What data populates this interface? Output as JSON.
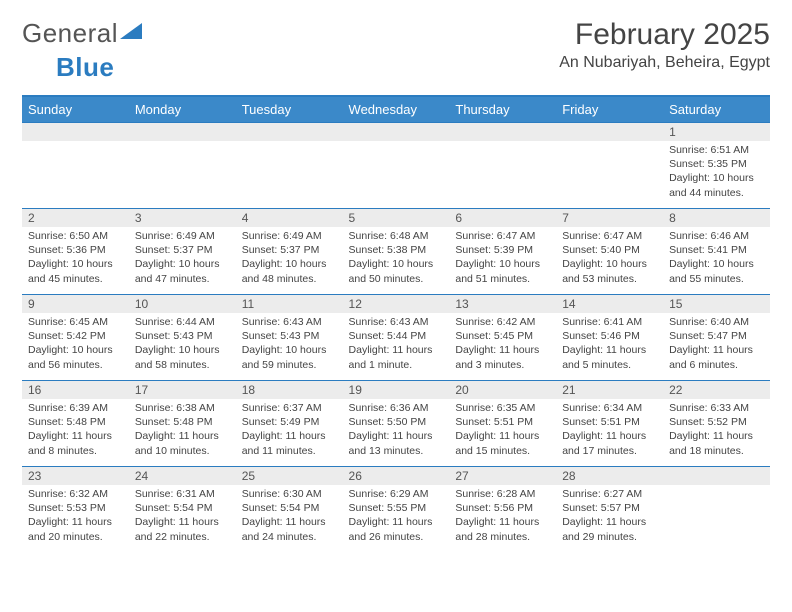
{
  "logo": {
    "text1": "General",
    "text2": "Blue"
  },
  "title": "February 2025",
  "location": "An Nubariyah, Beheira, Egypt",
  "colors": {
    "header_bg": "#3b89c9",
    "header_text": "#ffffff",
    "border": "#2b7cc0",
    "daynum_bg": "#ececec",
    "text": "#444444"
  },
  "weekdays": [
    "Sunday",
    "Monday",
    "Tuesday",
    "Wednesday",
    "Thursday",
    "Friday",
    "Saturday"
  ],
  "first_weekday": 6,
  "days": [
    {
      "n": 1,
      "sr": "6:51 AM",
      "ss": "5:35 PM",
      "dl": "10 hours and 44 minutes."
    },
    {
      "n": 2,
      "sr": "6:50 AM",
      "ss": "5:36 PM",
      "dl": "10 hours and 45 minutes."
    },
    {
      "n": 3,
      "sr": "6:49 AM",
      "ss": "5:37 PM",
      "dl": "10 hours and 47 minutes."
    },
    {
      "n": 4,
      "sr": "6:49 AM",
      "ss": "5:37 PM",
      "dl": "10 hours and 48 minutes."
    },
    {
      "n": 5,
      "sr": "6:48 AM",
      "ss": "5:38 PM",
      "dl": "10 hours and 50 minutes."
    },
    {
      "n": 6,
      "sr": "6:47 AM",
      "ss": "5:39 PM",
      "dl": "10 hours and 51 minutes."
    },
    {
      "n": 7,
      "sr": "6:47 AM",
      "ss": "5:40 PM",
      "dl": "10 hours and 53 minutes."
    },
    {
      "n": 8,
      "sr": "6:46 AM",
      "ss": "5:41 PM",
      "dl": "10 hours and 55 minutes."
    },
    {
      "n": 9,
      "sr": "6:45 AM",
      "ss": "5:42 PM",
      "dl": "10 hours and 56 minutes."
    },
    {
      "n": 10,
      "sr": "6:44 AM",
      "ss": "5:43 PM",
      "dl": "10 hours and 58 minutes."
    },
    {
      "n": 11,
      "sr": "6:43 AM",
      "ss": "5:43 PM",
      "dl": "10 hours and 59 minutes."
    },
    {
      "n": 12,
      "sr": "6:43 AM",
      "ss": "5:44 PM",
      "dl": "11 hours and 1 minute."
    },
    {
      "n": 13,
      "sr": "6:42 AM",
      "ss": "5:45 PM",
      "dl": "11 hours and 3 minutes."
    },
    {
      "n": 14,
      "sr": "6:41 AM",
      "ss": "5:46 PM",
      "dl": "11 hours and 5 minutes."
    },
    {
      "n": 15,
      "sr": "6:40 AM",
      "ss": "5:47 PM",
      "dl": "11 hours and 6 minutes."
    },
    {
      "n": 16,
      "sr": "6:39 AM",
      "ss": "5:48 PM",
      "dl": "11 hours and 8 minutes."
    },
    {
      "n": 17,
      "sr": "6:38 AM",
      "ss": "5:48 PM",
      "dl": "11 hours and 10 minutes."
    },
    {
      "n": 18,
      "sr": "6:37 AM",
      "ss": "5:49 PM",
      "dl": "11 hours and 11 minutes."
    },
    {
      "n": 19,
      "sr": "6:36 AM",
      "ss": "5:50 PM",
      "dl": "11 hours and 13 minutes."
    },
    {
      "n": 20,
      "sr": "6:35 AM",
      "ss": "5:51 PM",
      "dl": "11 hours and 15 minutes."
    },
    {
      "n": 21,
      "sr": "6:34 AM",
      "ss": "5:51 PM",
      "dl": "11 hours and 17 minutes."
    },
    {
      "n": 22,
      "sr": "6:33 AM",
      "ss": "5:52 PM",
      "dl": "11 hours and 18 minutes."
    },
    {
      "n": 23,
      "sr": "6:32 AM",
      "ss": "5:53 PM",
      "dl": "11 hours and 20 minutes."
    },
    {
      "n": 24,
      "sr": "6:31 AM",
      "ss": "5:54 PM",
      "dl": "11 hours and 22 minutes."
    },
    {
      "n": 25,
      "sr": "6:30 AM",
      "ss": "5:54 PM",
      "dl": "11 hours and 24 minutes."
    },
    {
      "n": 26,
      "sr": "6:29 AM",
      "ss": "5:55 PM",
      "dl": "11 hours and 26 minutes."
    },
    {
      "n": 27,
      "sr": "6:28 AM",
      "ss": "5:56 PM",
      "dl": "11 hours and 28 minutes."
    },
    {
      "n": 28,
      "sr": "6:27 AM",
      "ss": "5:57 PM",
      "dl": "11 hours and 29 minutes."
    }
  ]
}
